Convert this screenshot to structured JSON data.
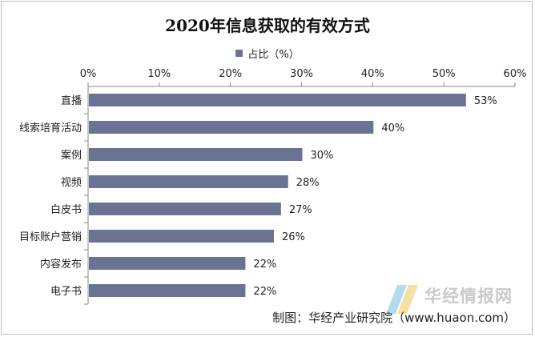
{
  "title": "2020年信息获取的有效方式",
  "credit": "制图：华经产业研究院（www.huaon.com）",
  "watermark": "华经情报网",
  "colors": {
    "bar": "#6b7394",
    "axis": "#888888",
    "text": "#222222"
  },
  "chart_data": {
    "type": "bar",
    "orientation": "horizontal",
    "title": "2020年信息获取的有效方式",
    "xaxis_position": "top",
    "xlim": [
      0,
      60
    ],
    "xticks": [
      "0%",
      "10%",
      "20%",
      "30%",
      "40%",
      "50%",
      "60%"
    ],
    "legend_position": "top-center",
    "grid": false,
    "categories": [
      "直播",
      "线索培育活动",
      "案例",
      "视频",
      "白皮书",
      "目标账户营销",
      "内容发布",
      "电子书"
    ],
    "series": [
      {
        "name": "占比（%）",
        "values": [
          53,
          40,
          30,
          28,
          27,
          26,
          22,
          22
        ],
        "labels": [
          "53%",
          "40%",
          "30%",
          "28%",
          "27%",
          "26%",
          "22%",
          "22%"
        ]
      }
    ]
  }
}
